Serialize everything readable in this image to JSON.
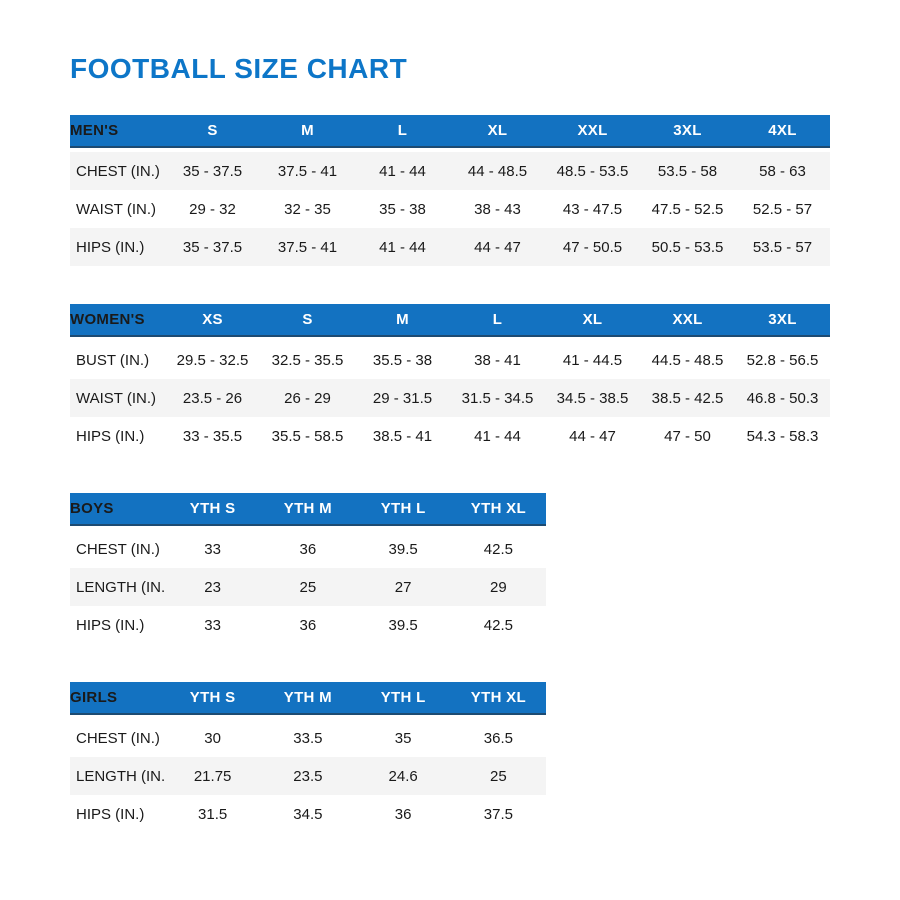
{
  "page": {
    "title": "FOOTBALL SIZE CHART"
  },
  "colors": {
    "title_blue": "#0d76c8",
    "header_blue": "#1372c1",
    "header_underline": "#1d4b72",
    "header_text": "#ffffff",
    "row_shade": "#f4f4f4",
    "body_text": "#1a1a1a"
  },
  "chart_data": [
    {
      "type": "table",
      "id": "mens",
      "title": "MEN'S",
      "columns": [
        "MEN'S",
        "S",
        "M",
        "L",
        "XL",
        "XXL",
        "3XL",
        "4XL"
      ],
      "shaded_rows": [
        0,
        2
      ],
      "rows": [
        {
          "label": "CHEST (IN.)",
          "values": [
            "35 - 37.5",
            "37.5 - 41",
            "41 - 44",
            "44 - 48.5",
            "48.5 - 53.5",
            "53.5 - 58",
            "58 - 63"
          ]
        },
        {
          "label": "WAIST (IN.)",
          "values": [
            "29 - 32",
            "32 - 35",
            "35 - 38",
            "38 - 43",
            "43 - 47.5",
            "47.5 - 52.5",
            "52.5 - 57"
          ]
        },
        {
          "label": "HIPS (IN.)",
          "values": [
            "35 - 37.5",
            "37.5 - 41",
            "41 - 44",
            "44 - 47",
            "47 - 50.5",
            "50.5 - 53.5",
            "53.5 - 57"
          ]
        }
      ]
    },
    {
      "type": "table",
      "id": "womens",
      "title": "WOMEN'S",
      "columns": [
        "WOMEN'S",
        "XS",
        "S",
        "M",
        "L",
        "XL",
        "XXL",
        "3XL"
      ],
      "shaded_rows": [
        1
      ],
      "rows": [
        {
          "label": "BUST (IN.)",
          "values": [
            "29.5 - 32.5",
            "32.5 - 35.5",
            "35.5 - 38",
            "38 - 41",
            "41 - 44.5",
            "44.5 - 48.5",
            "52.8 - 56.5"
          ]
        },
        {
          "label": "WAIST (IN.)",
          "values": [
            "23.5 - 26",
            "26 - 29",
            "29 - 31.5",
            "31.5 - 34.5",
            "34.5 - 38.5",
            "38.5 - 42.5",
            "46.8 - 50.3"
          ]
        },
        {
          "label": "HIPS (IN.)",
          "values": [
            "33 - 35.5",
            "35.5 - 58.5",
            "38.5 - 41",
            "41 - 44",
            "44 - 47",
            "47 - 50",
            "54.3 - 58.3"
          ]
        }
      ]
    },
    {
      "type": "table",
      "id": "boys",
      "title": "BOYS",
      "columns": [
        "BOYS",
        "YTH S",
        "YTH M",
        "YTH L",
        "YTH XL"
      ],
      "shaded_rows": [
        1
      ],
      "rows": [
        {
          "label": "CHEST (IN.)",
          "values": [
            "33",
            "36",
            "39.5",
            "42.5"
          ]
        },
        {
          "label": "LENGTH (IN.)",
          "values": [
            "23",
            "25",
            "27",
            "29"
          ]
        },
        {
          "label": "HIPS (IN.)",
          "values": [
            "33",
            "36",
            "39.5",
            "42.5"
          ]
        }
      ]
    },
    {
      "type": "table",
      "id": "girls",
      "title": "GIRLS",
      "columns": [
        "GIRLS",
        "YTH S",
        "YTH M",
        "YTH L",
        "YTH XL"
      ],
      "shaded_rows": [
        1
      ],
      "rows": [
        {
          "label": "CHEST (IN.)",
          "values": [
            "30",
            "33.5",
            "35",
            "36.5"
          ]
        },
        {
          "label": "LENGTH (IN.)",
          "values": [
            "21.75",
            "23.5",
            "24.6",
            "25"
          ]
        },
        {
          "label": "HIPS (IN.)",
          "values": [
            "31.5",
            "34.5",
            "36",
            "37.5"
          ]
        }
      ]
    }
  ]
}
